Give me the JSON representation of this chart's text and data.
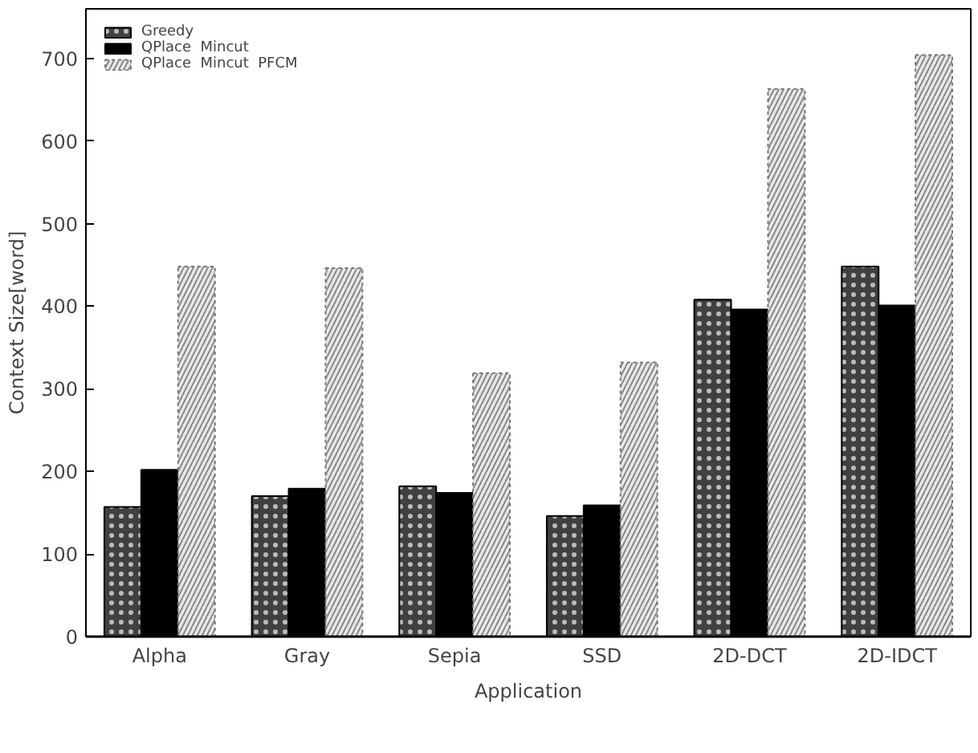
{
  "chart_data": {
    "type": "bar",
    "xlabel": "Application",
    "ylabel": "Context Size[word]",
    "categories": [
      "Alpha",
      "Gray",
      "Sepia",
      "SSD",
      "2D-DCT",
      "2D-IDCT"
    ],
    "series": [
      {
        "name": "Greedy",
        "color": "#404040",
        "values": [
          157,
          170,
          182,
          146,
          408,
          448
        ]
      },
      {
        "name": "QPlace  Mincut",
        "color": "#000000",
        "values": [
          202,
          179,
          174,
          159,
          396,
          401
        ]
      },
      {
        "name": "QPlace  Mincut  PFCM",
        "color": "#e8e8e8",
        "values": [
          448,
          446,
          319,
          332,
          663,
          704
        ]
      }
    ],
    "ylim": [
      0,
      760
    ],
    "yticks": [
      0,
      100,
      200,
      300,
      400,
      500,
      600,
      700
    ],
    "grid": false,
    "legend": "top left"
  }
}
